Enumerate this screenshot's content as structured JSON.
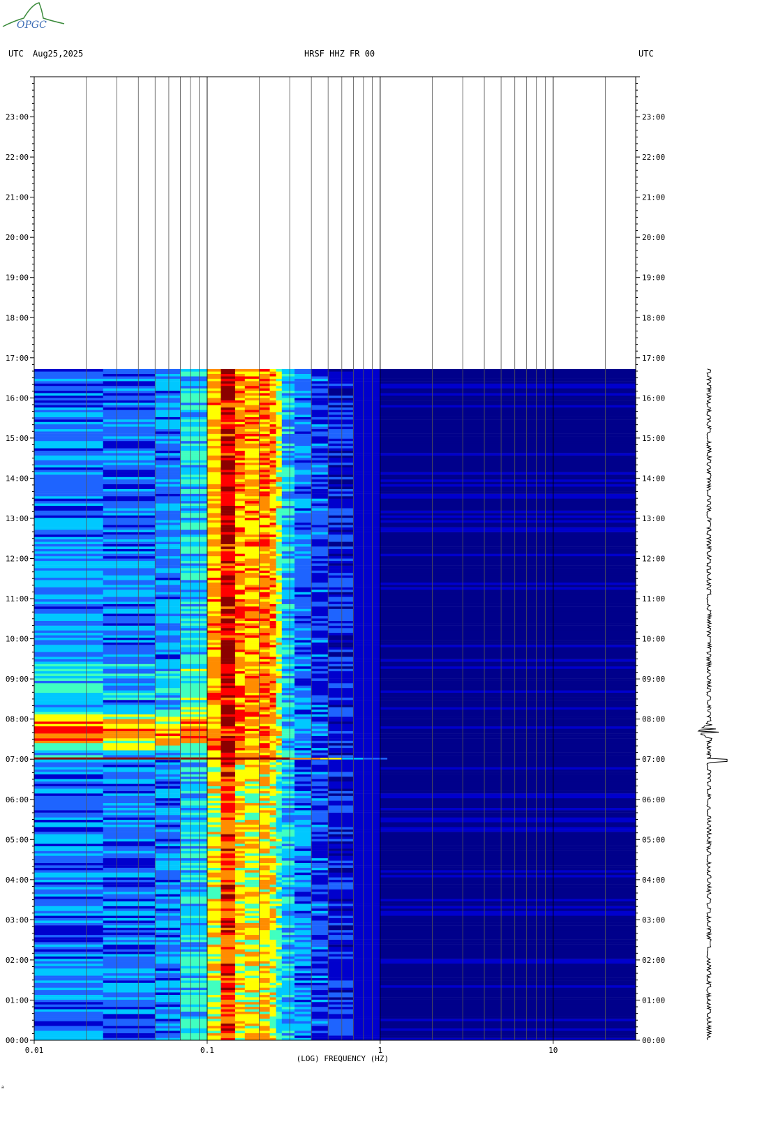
{
  "logo": {
    "text": "OPGC",
    "color": "#3a8a3a"
  },
  "header": {
    "left_utc": "UTC",
    "date": "Aug25,2025",
    "station": "HRSF HHZ FR 00",
    "right_utc": "UTC"
  },
  "footer_mark": "a",
  "chart_data": {
    "type": "heatmap",
    "title": "HRSF HHZ FR 00",
    "xlabel": "(LOG) FREQUENCY (HZ)",
    "ylabel": "UTC",
    "x_scale": "log",
    "xlim_hz": [
      0.01,
      30
    ],
    "ylim_hours": [
      0,
      24
    ],
    "x_tick_labels": [
      {
        "value": 0.01,
        "label": "0.01"
      },
      {
        "value": 0.1,
        "label": "0.1"
      },
      {
        "value": 1,
        "label": "1"
      },
      {
        "value": 10,
        "label": "10"
      }
    ],
    "y_tick_labels": [
      {
        "hour": 0,
        "label": "00:00"
      },
      {
        "hour": 1,
        "label": "01:00"
      },
      {
        "hour": 2,
        "label": "02:00"
      },
      {
        "hour": 3,
        "label": "03:00"
      },
      {
        "hour": 4,
        "label": "04:00"
      },
      {
        "hour": 5,
        "label": "05:00"
      },
      {
        "hour": 6,
        "label": "06:00"
      },
      {
        "hour": 7,
        "label": "07:00"
      },
      {
        "hour": 8,
        "label": "08:00"
      },
      {
        "hour": 9,
        "label": "09:00"
      },
      {
        "hour": 10,
        "label": "10:00"
      },
      {
        "hour": 11,
        "label": "11:00"
      },
      {
        "hour": 12,
        "label": "12:00"
      },
      {
        "hour": 13,
        "label": "13:00"
      },
      {
        "hour": 14,
        "label": "14:00"
      },
      {
        "hour": 15,
        "label": "15:00"
      },
      {
        "hour": 16,
        "label": "16:00"
      },
      {
        "hour": 17,
        "label": "17:00"
      },
      {
        "hour": 18,
        "label": "18:00"
      },
      {
        "hour": 19,
        "label": "19:00"
      },
      {
        "hour": 20,
        "label": "20:00"
      },
      {
        "hour": 21,
        "label": "21:00"
      },
      {
        "hour": 22,
        "label": "22:00"
      },
      {
        "hour": 23,
        "label": "23:00"
      }
    ],
    "data_end_hour": 16.72,
    "event": {
      "start_hour": 6.97,
      "peak_hour": 7.7,
      "end_hour": 8.5
    },
    "colormap": [
      "#00008b",
      "#0000cd",
      "#1e64ff",
      "#00c8ff",
      "#40ffc0",
      "#ffff00",
      "#ff8c00",
      "#ff0000",
      "#8b0000"
    ]
  }
}
